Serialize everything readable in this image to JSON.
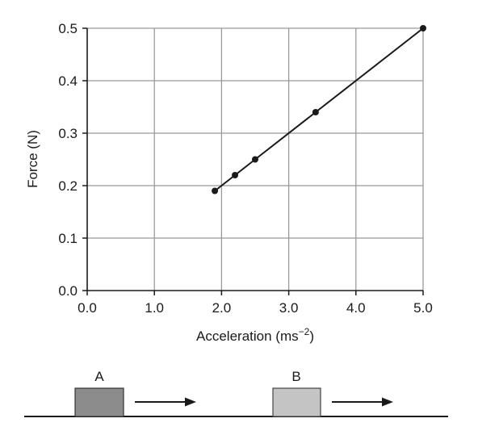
{
  "chart_data": {
    "type": "line",
    "title": "",
    "xlabel": "Acceleration (ms",
    "xlabel_superscript": "−2",
    "xlabel_suffix": ")",
    "ylabel": "Force (N)",
    "xlim": [
      0.0,
      5.0
    ],
    "ylim": [
      0.0,
      0.5
    ],
    "x_ticks": [
      "0.0",
      "1.0",
      "2.0",
      "3.0",
      "4.0",
      "5.0"
    ],
    "y_ticks": [
      "0.0",
      "0.1",
      "0.2",
      "0.3",
      "0.4",
      "0.5"
    ],
    "grid": true,
    "series": [
      {
        "x": [
          1.9,
          2.2,
          2.5,
          3.4,
          5.0
        ],
        "y": [
          0.19,
          0.22,
          0.25,
          0.34,
          0.5
        ]
      }
    ]
  },
  "diagram": {
    "block_a_label": "A",
    "block_b_label": "B",
    "block_a_color": "#8c8c8c",
    "block_b_color": "#c4c4c4"
  }
}
